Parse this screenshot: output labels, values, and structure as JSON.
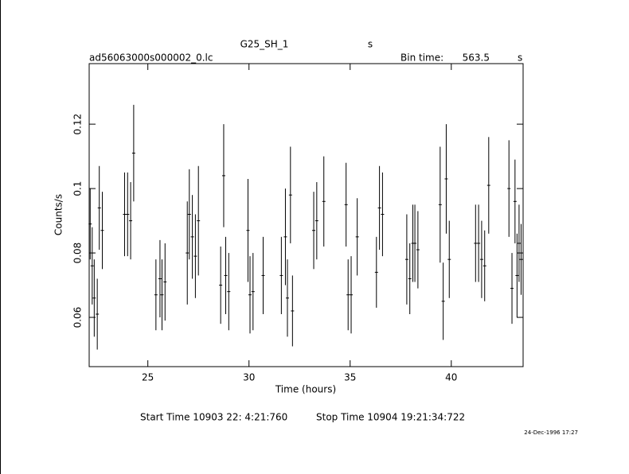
{
  "chart_data": {
    "type": "errorbar",
    "title": "G25_SH_1",
    "title_unit": "s",
    "subtitle": "ad56063000s000002_0.lc",
    "bin_time_label": "Bin time:",
    "bin_time": 563.5,
    "bin_time_unit": "s",
    "xlabel": "Time (hours)",
    "ylabel": "Counts/s",
    "start_time": "Start Time 10903 22: 4:21:760",
    "stop_time": "Stop Time 10904 19:21:34:722",
    "date": "24-Dec-1996 17:27",
    "xlim": [
      22.1,
      43.55
    ],
    "xticks": [
      25,
      30,
      35,
      40
    ],
    "ylim": [
      0.0447,
      0.1388
    ],
    "yticks": [
      0.06,
      0.08,
      0.1,
      0.12
    ],
    "x": [
      22.15,
      22.25,
      22.35,
      22.5,
      22.6,
      22.75,
      23.85,
      24.0,
      24.15,
      24.3,
      25.4,
      25.6,
      25.7,
      25.85,
      26.95,
      27.05,
      27.2,
      27.35,
      27.5,
      28.6,
      28.75,
      28.85,
      29.0,
      29.95,
      30.05,
      30.2,
      30.7,
      31.6,
      31.8,
      31.9,
      32.05,
      32.15,
      33.2,
      33.35,
      33.7,
      34.8,
      34.9,
      35.05,
      35.35,
      36.3,
      36.45,
      36.6,
      37.8,
      37.95,
      38.1,
      38.2,
      38.35,
      39.45,
      39.6,
      39.75,
      39.9,
      41.2,
      41.35,
      41.5,
      41.65,
      41.85,
      42.85,
      43.0,
      43.15,
      43.25,
      43.35,
      43.45
    ],
    "values": [
      0.089,
      0.076,
      0.066,
      0.061,
      0.094,
      0.087,
      0.092,
      0.092,
      0.09,
      0.111,
      0.067,
      0.072,
      0.067,
      0.071,
      0.08,
      0.092,
      0.085,
      0.079,
      0.09,
      0.07,
      0.104,
      0.073,
      0.068,
      0.087,
      0.067,
      0.068,
      0.073,
      0.073,
      0.085,
      0.066,
      0.098,
      0.062,
      0.087,
      0.09,
      0.096,
      0.095,
      0.067,
      0.067,
      0.085,
      0.074,
      0.094,
      0.092,
      0.078,
      0.072,
      0.083,
      0.083,
      0.081,
      0.095,
      0.065,
      0.103,
      0.078,
      0.083,
      0.083,
      0.078,
      0.076,
      0.101,
      0.1,
      0.069,
      0.096,
      0.073,
      0.083,
      0.078
    ],
    "errors": [
      0.011,
      0.012,
      0.012,
      0.011,
      0.013,
      0.012,
      0.013,
      0.013,
      0.012,
      0.015,
      0.011,
      0.012,
      0.011,
      0.012,
      0.016,
      0.014,
      0.013,
      0.013,
      0.017,
      0.012,
      0.016,
      0.012,
      0.012,
      0.016,
      0.012,
      0.012,
      0.012,
      0.012,
      0.015,
      0.012,
      0.015,
      0.011,
      0.012,
      0.012,
      0.014,
      0.013,
      0.011,
      0.012,
      0.012,
      0.011,
      0.013,
      0.013,
      0.014,
      0.011,
      0.012,
      0.012,
      0.012,
      0.018,
      0.012,
      0.017,
      0.012,
      0.012,
      0.012,
      0.012,
      0.011,
      0.015,
      0.015,
      0.011,
      0.013,
      0.013,
      0.012,
      0.011
    ],
    "color": "#000000"
  }
}
